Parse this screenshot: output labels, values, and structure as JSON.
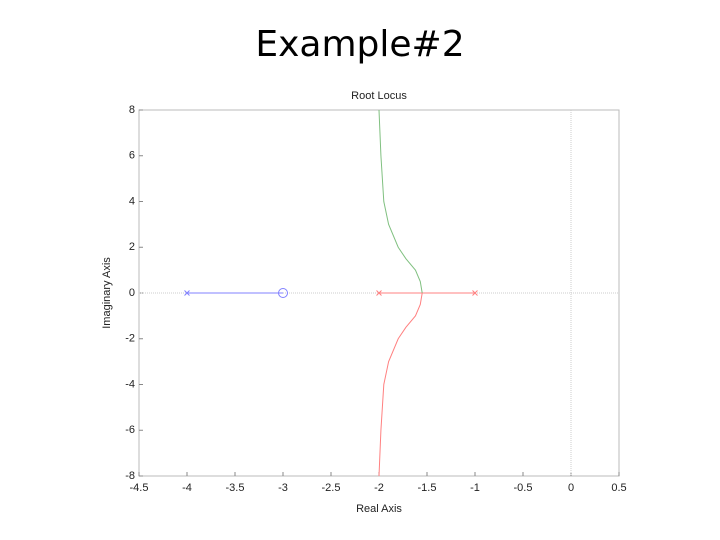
{
  "slide_title": "Example#2",
  "chart_data": {
    "type": "line",
    "title": "Root Locus",
    "x_label": "Real Axis",
    "y_label": "Imaginary Axis",
    "xlim": [
      -4.5,
      0.5
    ],
    "ylim": [
      -8,
      8
    ],
    "xticks": [
      -4.5,
      -4,
      -3.5,
      -3,
      -2.5,
      -2,
      -1.5,
      -1,
      -0.5,
      0,
      0.5
    ],
    "yticks": [
      -8,
      -6,
      -4,
      -2,
      0,
      2,
      4,
      6,
      8
    ],
    "zero_lines": true,
    "series": [
      {
        "color": "#8080ff",
        "marker": "none",
        "x": [
          -4,
          -3
        ],
        "values": [
          0,
          0
        ]
      },
      {
        "color": "#ff8080",
        "marker": "none",
        "x": [
          -1,
          -1.55
        ],
        "values": [
          0,
          0
        ]
      },
      {
        "color": "#ff8080",
        "marker": "none",
        "x": [
          -2,
          -1.55
        ],
        "values": [
          0,
          0
        ]
      },
      {
        "color": "#80c080",
        "marker": "none",
        "x": [
          -1.55,
          -1.57,
          -1.62,
          -1.72,
          -1.8,
          -1.9,
          -1.95,
          -1.98,
          -2
        ],
        "values": [
          0,
          0.5,
          1,
          1.5,
          2,
          3,
          4,
          6,
          8
        ]
      },
      {
        "color": "#ff8080",
        "marker": "none",
        "x": [
          -1.55,
          -1.57,
          -1.62,
          -1.72,
          -1.8,
          -1.9,
          -1.95,
          -1.98,
          -2
        ],
        "values": [
          0,
          -0.5,
          -1,
          -1.5,
          -2,
          -3,
          -4,
          -6,
          -8
        ]
      },
      {
        "color": "#8080ff",
        "marker": "x",
        "x": [
          -4
        ],
        "values": [
          0
        ]
      },
      {
        "color": "#ff8080",
        "marker": "x",
        "x": [
          -2,
          -1
        ],
        "values": [
          0,
          0
        ]
      },
      {
        "color": "#8080ff",
        "marker": "o",
        "x": [
          -3
        ],
        "values": [
          0
        ]
      }
    ]
  }
}
